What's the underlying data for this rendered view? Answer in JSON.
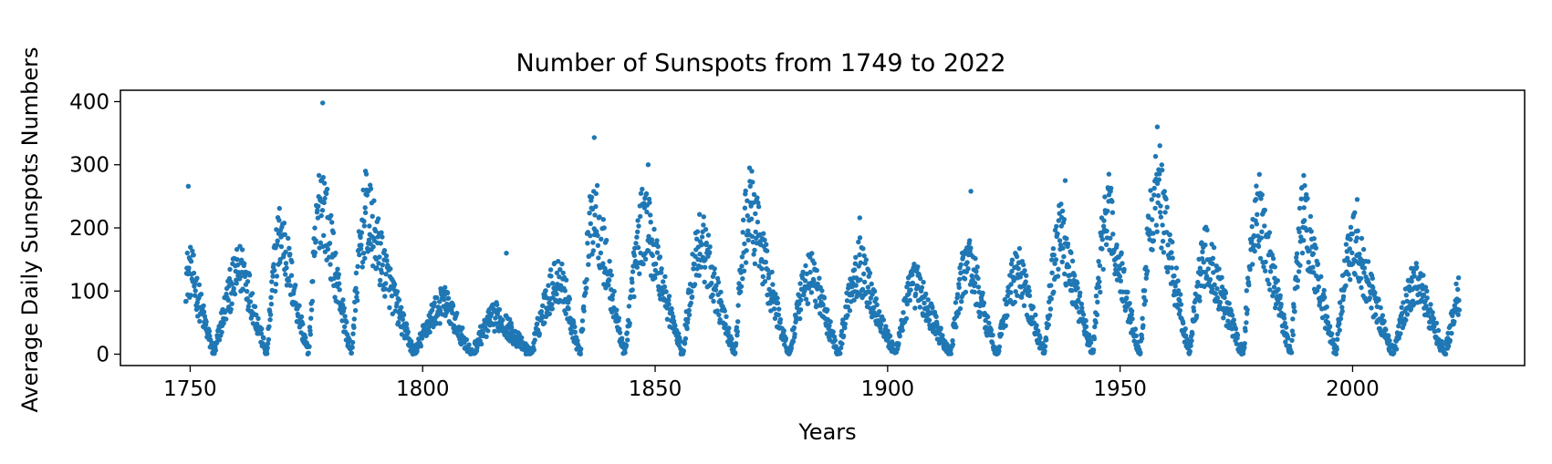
{
  "chart_data": {
    "type": "scatter",
    "title": "Number of Sunspots from 1749 to 2022",
    "xlabel": "Years",
    "ylabel": "Average Daily Sunspots Numbers",
    "xlim": [
      1735,
      2037
    ],
    "ylim": [
      -18,
      418
    ],
    "xticks": [
      1750,
      1800,
      1850,
      1900,
      1950,
      2000
    ],
    "yticks": [
      0,
      100,
      200,
      300,
      400
    ],
    "grid": false,
    "legend": "none",
    "marker_color": "#1f77b4",
    "sampling": "monthly mean values, approximately Jan 1749 to Dec 2022",
    "cycle_minima": [
      1755.2,
      1766.5,
      1775.5,
      1784.7,
      1798.3,
      1810.6,
      1823.3,
      1833.9,
      1843.5,
      1856.0,
      1867.2,
      1878.9,
      1889.6,
      1901.7,
      1913.6,
      1923.6,
      1933.8,
      1944.2,
      1954.3,
      1964.9,
      1976.5,
      1986.8,
      1996.4,
      2008.9,
      2019.9
    ],
    "cycle_maxima": [
      [
        1750.3,
        130
      ],
      [
        1761.5,
        135
      ],
      [
        1769.7,
        190
      ],
      [
        1778.4,
        250
      ],
      [
        1788.1,
        220
      ],
      [
        1805.2,
        80
      ],
      [
        1816.4,
        60
      ],
      [
        1829.9,
        120
      ],
      [
        1837.2,
        230
      ],
      [
        1848.1,
        210
      ],
      [
        1860.1,
        180
      ],
      [
        1870.6,
        230
      ],
      [
        1883.9,
        125
      ],
      [
        1894.1,
        140
      ],
      [
        1906.2,
        110
      ],
      [
        1917.6,
        150
      ],
      [
        1928.4,
        130
      ],
      [
        1937.4,
        190
      ],
      [
        1947.5,
        220
      ],
      [
        1958.2,
        270
      ],
      [
        1968.9,
        160
      ],
      [
        1979.9,
        230
      ],
      [
        1989.6,
        220
      ],
      [
        2000.3,
        180
      ],
      [
        2014.3,
        115
      ]
    ],
    "outliers": [
      [
        1749.6,
        266
      ],
      [
        1778.5,
        398
      ],
      [
        1787.7,
        290
      ],
      [
        1818.0,
        160
      ],
      [
        1836.9,
        343
      ],
      [
        1848.5,
        300
      ],
      [
        1870.3,
        295
      ],
      [
        1894.0,
        216
      ],
      [
        1917.9,
        258
      ],
      [
        1938.2,
        275
      ],
      [
        1947.6,
        285
      ],
      [
        1958.0,
        360
      ],
      [
        1989.5,
        283
      ],
      [
        2001.0,
        245
      ]
    ]
  }
}
